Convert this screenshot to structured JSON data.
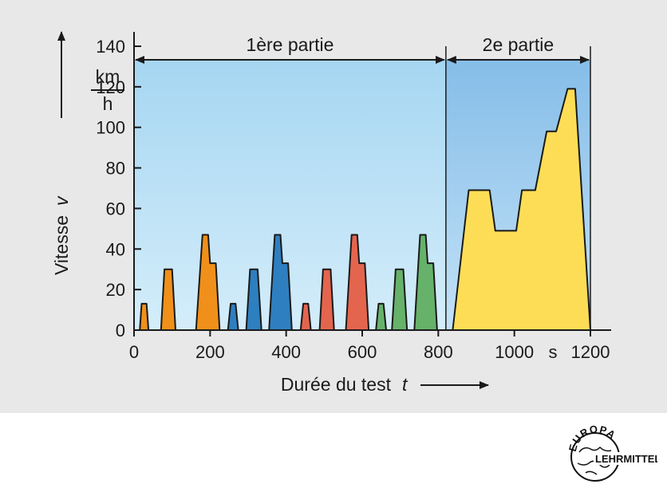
{
  "chart_data": {
    "type": "area",
    "xlim": [
      0,
      1200
    ],
    "ylim": [
      0,
      140
    ],
    "x_ticks": [
      {
        "value": 0,
        "label": "0"
      },
      {
        "value": 200,
        "label": "200"
      },
      {
        "value": 400,
        "label": "400"
      },
      {
        "value": 600,
        "label": "600"
      },
      {
        "value": 800,
        "label": "800"
      },
      {
        "value": 1000,
        "label": "1000"
      },
      {
        "value": 1200,
        "label": "1200"
      }
    ],
    "x_unit": "s",
    "y_ticks": [
      0,
      20,
      40,
      60,
      80,
      100,
      120,
      140
    ],
    "y_unit_numerator": "km",
    "y_unit_denominator": "h",
    "xlabel": "Durée du test",
    "xlabel_symbol": "t",
    "ylabel": "Vitesse",
    "ylabel_symbol": "v",
    "boundary_x": 820,
    "segments": [
      {
        "label": "1ère partie",
        "x_start": 0,
        "x_end": 820,
        "color": "#bfe3f6"
      },
      {
        "label": "2e partie",
        "x_start": 820,
        "x_end": 1200,
        "color": "#9fcdef"
      }
    ],
    "series": [
      {
        "color": "#f0901a",
        "points": [
          [
            15,
            0
          ],
          [
            20,
            13
          ],
          [
            33,
            13
          ],
          [
            38,
            0
          ]
        ]
      },
      {
        "color": "#f0901a",
        "points": [
          [
            71,
            0
          ],
          [
            80,
            30
          ],
          [
            100,
            30
          ],
          [
            109,
            0
          ]
        ]
      },
      {
        "color": "#f0901a",
        "points": [
          [
            163,
            0
          ],
          [
            180,
            47
          ],
          [
            195,
            47
          ],
          [
            200,
            33
          ],
          [
            215,
            33
          ],
          [
            225,
            0
          ]
        ]
      },
      {
        "color": "#2e7fc0",
        "points": [
          [
            247,
            0
          ],
          [
            254,
            13
          ],
          [
            267,
            13
          ],
          [
            274,
            0
          ]
        ]
      },
      {
        "color": "#2e7fc0",
        "points": [
          [
            295,
            0
          ],
          [
            305,
            30
          ],
          [
            325,
            30
          ],
          [
            335,
            0
          ]
        ]
      },
      {
        "color": "#2e7fc0",
        "points": [
          [
            355,
            0
          ],
          [
            370,
            47
          ],
          [
            385,
            47
          ],
          [
            390,
            33
          ],
          [
            405,
            33
          ],
          [
            415,
            0
          ]
        ]
      },
      {
        "color": "#e4654e",
        "points": [
          [
            438,
            0
          ],
          [
            445,
            13
          ],
          [
            458,
            13
          ],
          [
            465,
            0
          ]
        ]
      },
      {
        "color": "#e4654e",
        "points": [
          [
            488,
            0
          ],
          [
            497,
            30
          ],
          [
            517,
            30
          ],
          [
            526,
            0
          ]
        ]
      },
      {
        "color": "#e4654e",
        "points": [
          [
            557,
            0
          ],
          [
            572,
            47
          ],
          [
            587,
            47
          ],
          [
            592,
            33
          ],
          [
            607,
            33
          ],
          [
            617,
            0
          ]
        ]
      },
      {
        "color": "#66b26a",
        "points": [
          [
            636,
            0
          ],
          [
            643,
            13
          ],
          [
            656,
            13
          ],
          [
            663,
            0
          ]
        ]
      },
      {
        "color": "#66b26a",
        "points": [
          [
            678,
            0
          ],
          [
            688,
            30
          ],
          [
            708,
            30
          ],
          [
            718,
            0
          ]
        ]
      },
      {
        "color": "#66b26a",
        "points": [
          [
            737,
            0
          ],
          [
            752,
            47
          ],
          [
            767,
            47
          ],
          [
            772,
            33
          ],
          [
            787,
            33
          ],
          [
            797,
            0
          ]
        ]
      },
      {
        "color": "#fedd56",
        "points": [
          [
            838,
            0
          ],
          [
            880,
            69
          ],
          [
            935,
            69
          ],
          [
            950,
            49
          ],
          [
            1005,
            49
          ],
          [
            1020,
            69
          ],
          [
            1055,
            69
          ],
          [
            1085,
            98
          ],
          [
            1110,
            98
          ],
          [
            1140,
            119
          ],
          [
            1160,
            119
          ],
          [
            1200,
            0
          ]
        ]
      }
    ]
  },
  "logo": {
    "top": "EUROPA",
    "bottom": "LEHRMITTEL"
  }
}
